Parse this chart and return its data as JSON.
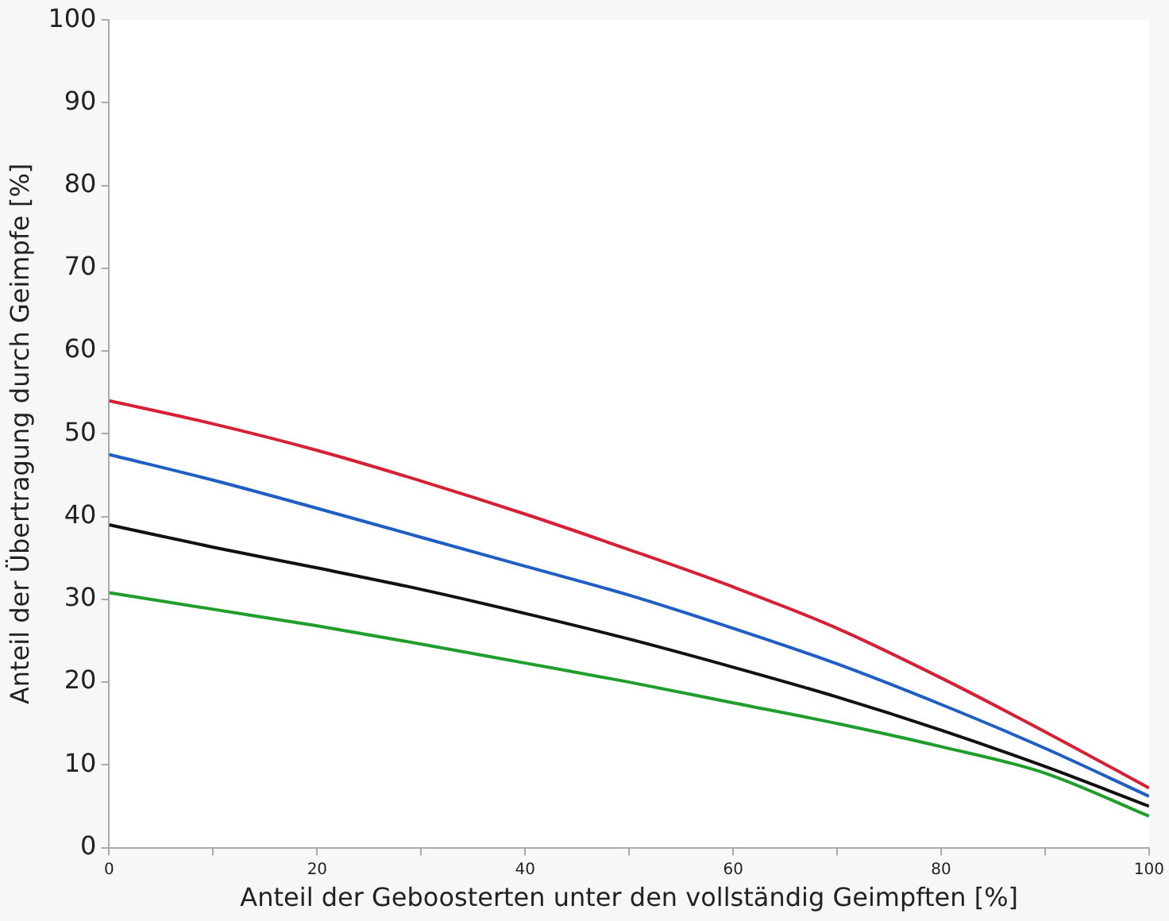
{
  "chart_data": {
    "type": "line",
    "xlabel": "Anteil der Geboosterten unter den vollständig Geimpften [%]",
    "ylabel": "Anteil der Übertragung durch Geimpfe [%]",
    "x": [
      0,
      10,
      20,
      30,
      40,
      50,
      60,
      70,
      80,
      90,
      100
    ],
    "series": [
      {
        "color": "#d62034",
        "values": [
          54,
          51.2,
          48,
          44.3,
          40.3,
          36,
          31.5,
          26.5,
          20.5,
          14,
          7.2
        ]
      },
      {
        "color": "#1f5fc4",
        "values": [
          47.5,
          44.4,
          41,
          37.5,
          34,
          30.5,
          26.5,
          22.2,
          17.3,
          12,
          6.2
        ]
      },
      {
        "color": "#111111",
        "values": [
          39,
          36.3,
          33.8,
          31.2,
          28.3,
          25.2,
          21.8,
          18.2,
          14.2,
          9.8,
          5
        ]
      },
      {
        "color": "#1f9e2c",
        "values": [
          30.8,
          28.8,
          26.8,
          24.6,
          22.3,
          20,
          17.5,
          15,
          12.2,
          9,
          3.8
        ]
      }
    ],
    "xlim": [
      0,
      100
    ],
    "xticks": [
      0,
      {
        "value": 10,
        "label": null
      },
      20,
      {
        "value": 30,
        "label": null
      },
      40,
      {
        "value": 50,
        "label": null
      },
      60,
      {
        "value": 70,
        "label": null
      },
      80,
      {
        "value": 90,
        "label": null
      },
      100
    ],
    "ylim": [
      0,
      100
    ],
    "yticks": [
      0,
      10,
      20,
      30,
      40,
      50,
      60,
      70,
      80,
      90,
      100
    ],
    "grid": false,
    "legend": false,
    "marker": "none",
    "line_style": "solid"
  }
}
